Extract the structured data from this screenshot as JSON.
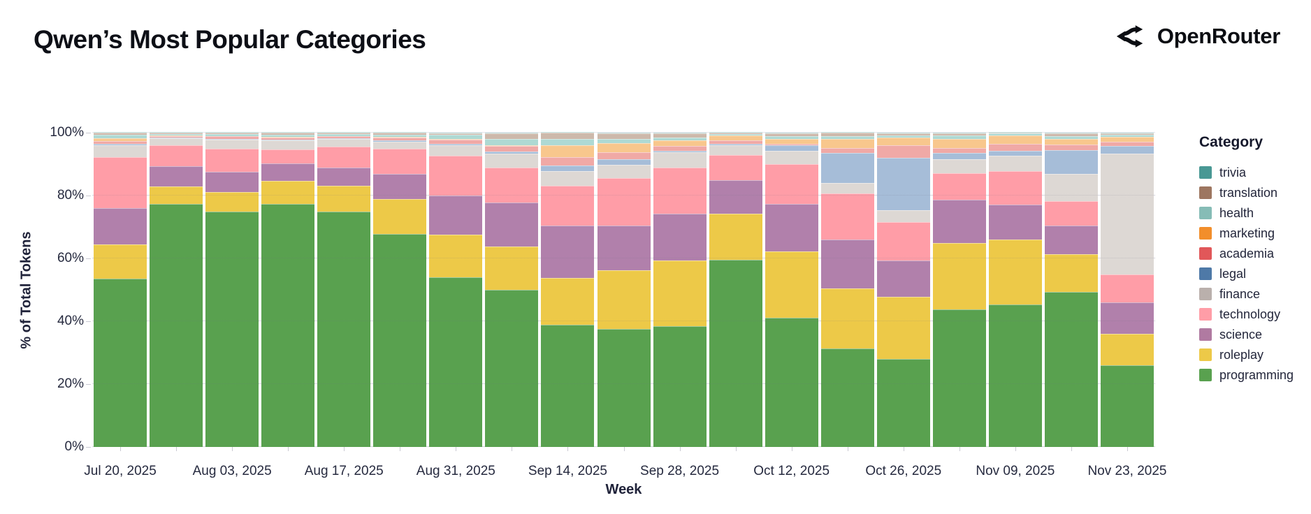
{
  "header": {
    "title": "Qwen’s Most Popular Categories",
    "brand": "OpenRouter"
  },
  "chart_data": {
    "type": "bar",
    "stacked": true,
    "title": "Qwen’s Most Popular Categories",
    "xlabel": "Week",
    "ylabel": "% of Total Tokens",
    "ylim": [
      0,
      100
    ],
    "grid": true,
    "legend_position": "right",
    "legend_title": "Category",
    "legend_order_top_to_bottom": [
      "trivia",
      "translation",
      "health",
      "marketing",
      "academia",
      "legal",
      "finance",
      "technology",
      "science",
      "roleplay",
      "programming"
    ],
    "y_ticks": [
      "0%",
      "20%",
      "40%",
      "60%",
      "80%",
      "100%"
    ],
    "y_tick_values": [
      0,
      20,
      40,
      60,
      80,
      100
    ],
    "x": [
      "Jul 20, 2025",
      "Jul 27, 2025",
      "Aug 03, 2025",
      "Aug 10, 2025",
      "Aug 17, 2025",
      "Aug 24, 2025",
      "Aug 31, 2025",
      "Sep 07, 2025",
      "Sep 14, 2025",
      "Sep 21, 2025",
      "Sep 28, 2025",
      "Oct 05, 2025",
      "Oct 12, 2025",
      "Oct 19, 2025",
      "Oct 26, 2025",
      "Nov 02, 2025",
      "Nov 09, 2025",
      "Nov 16, 2025",
      "Nov 23, 2025"
    ],
    "x_tick_indices": [
      0,
      2,
      4,
      6,
      8,
      10,
      12,
      14,
      16,
      18
    ],
    "x_tick_labels": [
      "Jul 20, 2025",
      "Aug 03, 2025",
      "Aug 17, 2025",
      "Aug 31, 2025",
      "Sep 14, 2025",
      "Sep 28, 2025",
      "Oct 12, 2025",
      "Oct 26, 2025",
      "Nov 09, 2025",
      "Nov 23, 2025"
    ],
    "series": [
      {
        "name": "programming",
        "legend_color": "#59a14f",
        "bar_color": "#59a14f",
        "values": [
          53.5,
          77.4,
          75.0,
          77.4,
          74.8,
          67.8,
          53.9,
          50.0,
          39.0,
          37.6,
          38.5,
          59.6,
          41.1,
          31.3,
          28.1,
          43.7,
          45.3,
          49.4,
          25.9
        ]
      },
      {
        "name": "roleplay",
        "legend_color": "#edc948",
        "bar_color": "#edc948",
        "values": [
          10.9,
          5.6,
          6.1,
          7.3,
          8.3,
          11.2,
          13.7,
          13.7,
          14.7,
          18.7,
          20.9,
          14.6,
          21.1,
          19.2,
          19.7,
          21.1,
          20.8,
          11.9,
          10.0
        ]
      },
      {
        "name": "science",
        "legend_color": "#b07aa1",
        "bar_color": "#b180ab",
        "values": [
          11.5,
          6.3,
          6.5,
          5.6,
          5.9,
          8.0,
          12.4,
          14.1,
          16.8,
          14.2,
          14.8,
          10.6,
          15.2,
          15.6,
          11.6,
          13.9,
          11.1,
          9.2,
          10.2
        ]
      },
      {
        "name": "technology",
        "legend_color": "#ff9da7",
        "bar_color": "#ff9da7",
        "values": [
          16.4,
          6.7,
          7.4,
          4.4,
          6.6,
          7.8,
          12.7,
          11.2,
          12.6,
          15.1,
          14.8,
          8.2,
          12.6,
          14.6,
          12.1,
          8.5,
          10.6,
          7.7,
          8.9
        ]
      },
      {
        "name": "finance",
        "legend_color": "#bab0ac",
        "bar_color": "#ddd8d4",
        "values": [
          3.8,
          2.2,
          2.7,
          2.8,
          2.3,
          2.4,
          3.2,
          4.3,
          4.7,
          4.2,
          4.7,
          2.9,
          4.2,
          3.2,
          3.8,
          4.4,
          4.9,
          8.8,
          38.3
        ]
      },
      {
        "name": "legal",
        "legend_color": "#4e79a7",
        "bar_color": "#a6bdd8",
        "values": [
          0.4,
          0.2,
          0.3,
          0.3,
          0.3,
          0.3,
          0.5,
          0.6,
          1.7,
          1.8,
          0.5,
          0.6,
          1.7,
          9.6,
          16.6,
          1.9,
          1.5,
          7.4,
          2.4
        ]
      },
      {
        "name": "academia",
        "legend_color": "#e15759",
        "bar_color": "#f0a9a6",
        "values": [
          0.8,
          0.6,
          0.8,
          0.7,
          0.6,
          1.0,
          1.3,
          1.8,
          2.7,
          2.1,
          1.5,
          1.1,
          0.6,
          1.7,
          4.0,
          1.7,
          2.2,
          1.8,
          1.5
        ]
      },
      {
        "name": "marketing",
        "legend_color": "#f28e2b",
        "bar_color": "#f8c78d",
        "values": [
          0.9,
          0.2,
          0.2,
          0.2,
          0.2,
          0.2,
          0.2,
          0.3,
          3.7,
          3.0,
          1.9,
          1.5,
          1.6,
          2.7,
          2.6,
          2.9,
          2.7,
          1.9,
          1.5
        ]
      },
      {
        "name": "health",
        "legend_color": "#86bcb6",
        "bar_color": "#aed9d3",
        "values": [
          1.2,
          0.4,
          0.5,
          0.7,
          0.5,
          0.7,
          1.4,
          1.9,
          2.0,
          1.2,
          0.9,
          0.5,
          0.7,
          1.0,
          0.6,
          1.1,
          0.6,
          0.8,
          0.7
        ]
      },
      {
        "name": "translation",
        "legend_color": "#9d7660",
        "bar_color": "#cdb9ab",
        "values": [
          0.5,
          0.3,
          0.4,
          0.5,
          0.4,
          0.5,
          0.5,
          1.9,
          2.0,
          1.9,
          1.3,
          0.3,
          1.0,
          1.0,
          0.7,
          0.6,
          0.2,
          0.8,
          0.4
        ]
      },
      {
        "name": "trivia",
        "legend_color": "#499894",
        "bar_color": "#8cc7c1",
        "values": [
          0.1,
          0.1,
          0.1,
          0.1,
          0.1,
          0.1,
          0.2,
          0.2,
          0.1,
          0.2,
          0.2,
          0.1,
          0.2,
          0.1,
          0.2,
          0.2,
          0.1,
          0.3,
          0.2
        ]
      }
    ]
  }
}
